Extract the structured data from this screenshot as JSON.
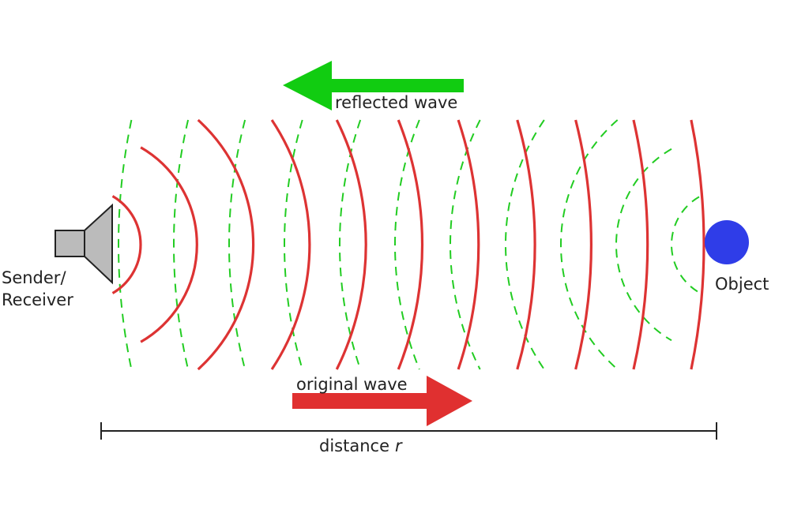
{
  "labels": {
    "reflected_wave": "reflected wave",
    "original_wave": "original wave",
    "sender_receiver": [
      "Sender/",
      "Receiver"
    ],
    "object": "Object",
    "distance": {
      "text": "distance",
      "variable": "r"
    }
  }
}
